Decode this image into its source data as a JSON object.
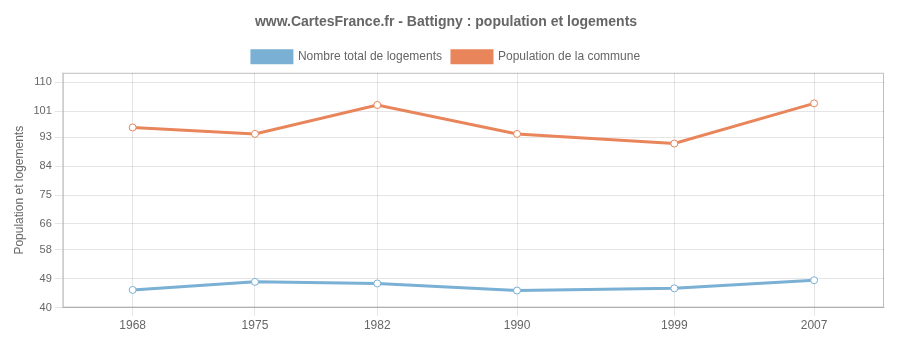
{
  "chart_data": {
    "type": "line",
    "title": "www.CartesFrance.fr - Battigny : population et logements",
    "ylabel": "Population et logements",
    "x": [
      1968,
      1975,
      1982,
      1990,
      1999,
      2007
    ],
    "series": [
      {
        "name": "Nombre total de logements",
        "color": "#7ab0d4",
        "values": [
          45.5,
          48.0,
          47.5,
          45.3,
          46.0,
          48.5
        ]
      },
      {
        "name": "Population de la commune",
        "color": "#e8855a",
        "values": [
          96.0,
          94.0,
          103.0,
          94.0,
          91.0,
          103.5
        ]
      }
    ],
    "xlim": [
      1964,
      2011
    ],
    "xticks": [
      1968,
      1975,
      1982,
      1990,
      1999,
      2007
    ],
    "ylim": [
      40,
      113
    ],
    "yticks": [
      40,
      49,
      58,
      66,
      75,
      84,
      93,
      101,
      110
    ],
    "grid": true,
    "legend": "top",
    "marker": "circle",
    "line_style": "solid"
  }
}
